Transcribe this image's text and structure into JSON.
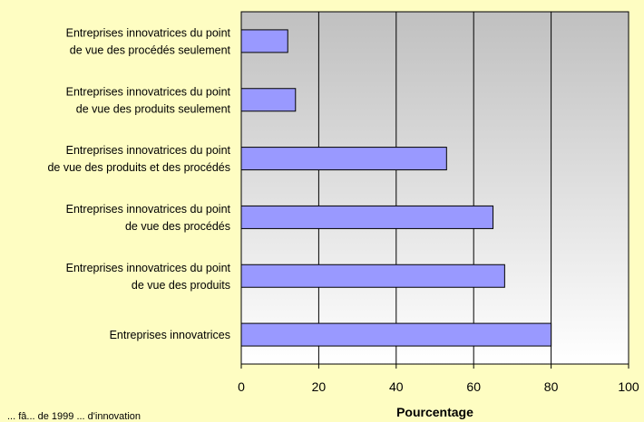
{
  "chart_data": {
    "type": "bar",
    "orientation": "horizontal",
    "categories": [
      [
        "Entreprises innovatrices du point",
        "de vue des procédés seulement"
      ],
      [
        "Entreprises innovatrices du point",
        "de vue des produits seulement"
      ],
      [
        "Entreprises innovatrices du point",
        "de vue des produits et des procédés"
      ],
      [
        "Entreprises innovatrices du point",
        "de vue des procédés"
      ],
      [
        "Entreprises innovatrices du point",
        "de vue des produits"
      ],
      [
        "Entreprises innovatrices"
      ]
    ],
    "values": [
      12,
      14,
      53,
      65,
      68,
      80
    ],
    "xlabel": "Pourcentage",
    "xlim": [
      0,
      100
    ],
    "xticks": [
      0,
      20,
      40,
      60,
      80,
      100
    ],
    "grid": true,
    "colors": {
      "bar_fill": "#9999ff",
      "bar_stroke": "#000000",
      "plot_bg_top": "#c0c0c0",
      "plot_bg_bottom": "#ffffff",
      "page_bg": "#fefdc2"
    }
  },
  "footnote": "... fâ... de 1999 ... d'innovation"
}
